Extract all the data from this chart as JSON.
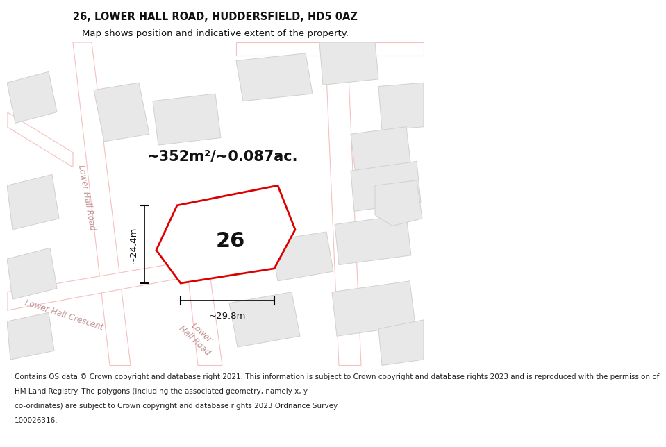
{
  "title": "26, LOWER HALL ROAD, HUDDERSFIELD, HD5 0AZ",
  "subtitle": "Map shows position and indicative extent of the property.",
  "title_fontsize": 10.5,
  "subtitle_fontsize": 9.5,
  "area_text": "~352m²/~0.087ac.",
  "property_number": "26",
  "dim_horizontal": "~29.8m",
  "dim_vertical": "~24.4m",
  "footer_lines": [
    "Contains OS data © Crown copyright and database right 2021. This information is subject to Crown copyright and database rights 2023 and is reproduced with the permission of",
    "HM Land Registry. The polygons (including the associated geometry, namely x, y",
    "co-ordinates) are subject to Crown copyright and database rights 2023 Ordnance Survey",
    "100026316."
  ],
  "background_color": "#ffffff",
  "road_color": "#f5c0c0",
  "road_fill": "#ffffff",
  "building_color": "#e8e8e8",
  "building_outline": "#d0d0d0",
  "highlight_color": "#dd0000",
  "text_color": "#111111",
  "road_label_color": "#c09090",
  "footer_fontsize": 7.5,
  "street_label_fontsize": 8.5,
  "area_fontsize": 15,
  "prop_num_fontsize": 22
}
